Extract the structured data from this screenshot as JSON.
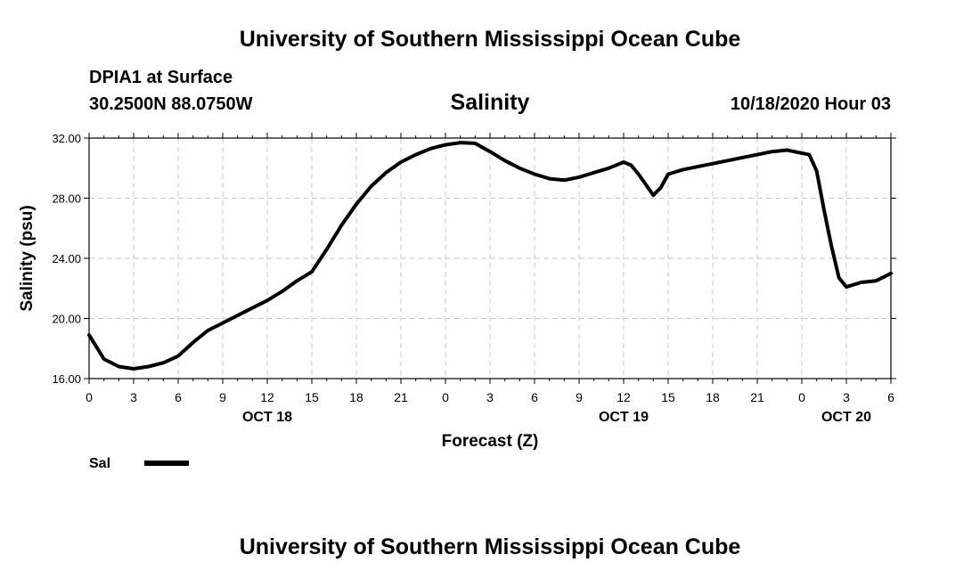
{
  "header": {
    "title_top": "University of Southern Mississippi Ocean Cube",
    "title_bottom": "University of Southern Mississippi Ocean Cube",
    "station": "DPIA1 at Surface",
    "coords": "30.2500N 88.0750W",
    "datetime": "10/18/2020 Hour 03"
  },
  "chart_data": {
    "type": "line",
    "title": "Salinity",
    "xlabel": "Forecast (Z)",
    "ylabel": "Salinity (psu)",
    "ylim": [
      16,
      32
    ],
    "yticks": [
      "16.00",
      "20.00",
      "24.00",
      "28.00",
      "32.00"
    ],
    "xlim": [
      0,
      54
    ],
    "xticks": [
      "0",
      "3",
      "6",
      "9",
      "12",
      "15",
      "18",
      "21",
      "0",
      "3",
      "6",
      "9",
      "12",
      "15",
      "18",
      "21",
      "0",
      "3",
      "6"
    ],
    "day_labels": [
      {
        "label": "OCT 18",
        "x": 12
      },
      {
        "label": "OCT 19",
        "x": 36
      },
      {
        "label": "OCT 20",
        "x": 51
      }
    ],
    "legend": {
      "label": "Sal",
      "position": "bottom-left"
    },
    "grid": true,
    "series": [
      {
        "name": "Sal",
        "x": [
          0,
          1,
          2,
          3,
          4,
          5,
          6,
          7,
          8,
          9,
          10,
          11,
          12,
          13,
          14,
          15,
          16,
          17,
          18,
          19,
          20,
          21,
          22,
          23,
          24,
          25,
          26,
          27,
          28,
          29,
          30,
          31,
          32,
          33,
          34,
          35,
          36,
          36.5,
          37,
          38,
          38.5,
          39,
          40,
          41,
          42,
          43,
          44,
          45,
          46,
          47,
          48,
          48.5,
          49,
          49.5,
          50,
          50.5,
          51,
          52,
          53,
          54
        ],
        "y": [
          18.9,
          17.3,
          16.8,
          16.65,
          16.8,
          17.05,
          17.5,
          18.4,
          19.2,
          19.7,
          20.2,
          20.7,
          21.2,
          21.8,
          22.5,
          23.1,
          24.6,
          26.2,
          27.6,
          28.8,
          29.7,
          30.4,
          30.9,
          31.3,
          31.55,
          31.7,
          31.65,
          31.1,
          30.5,
          30.0,
          29.6,
          29.3,
          29.2,
          29.4,
          29.7,
          30.0,
          30.4,
          30.2,
          29.6,
          28.2,
          28.7,
          29.6,
          29.9,
          30.1,
          30.3,
          30.5,
          30.7,
          30.9,
          31.1,
          31.2,
          31.0,
          30.9,
          29.8,
          27.2,
          24.8,
          22.7,
          22.1,
          22.4,
          22.5,
          23.0
        ]
      }
    ]
  }
}
